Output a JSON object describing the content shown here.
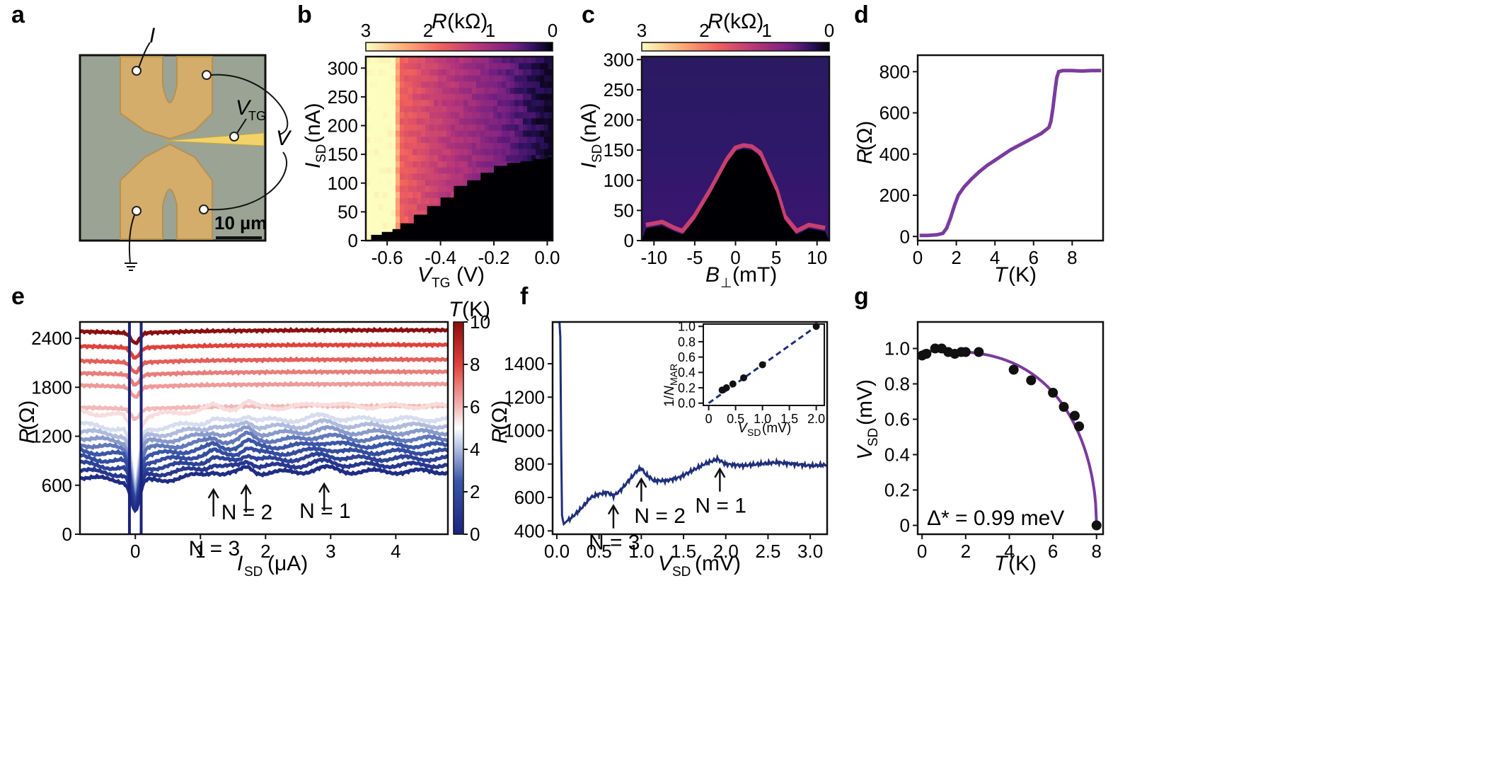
{
  "panel_letters": [
    "a",
    "b",
    "c",
    "d",
    "e",
    "f",
    "g"
  ],
  "panel_a": {
    "labels": {
      "I": "I",
      "VTG_main": "V",
      "VTG_sub": "TG",
      "V": "V"
    },
    "scalebar": "10 µm"
  },
  "chart_data": [
    {
      "panel": "b",
      "type": "heatmap",
      "xlabel_main": "V",
      "xlabel_sub": "TG",
      "xlabel_unit": "(V)",
      "ylabel_main": "I",
      "ylabel_sub": "SD",
      "ylabel_unit": "(nA)",
      "xlim": [
        -0.68,
        0.02
      ],
      "ylim": [
        0,
        320
      ],
      "xticks": [
        -0.6,
        -0.4,
        -0.2,
        0.0
      ],
      "xtick_labels": [
        "-0.6",
        "-0.4",
        "-0.2",
        "0.0"
      ],
      "yticks": [
        0,
        50,
        100,
        150,
        200,
        250,
        300
      ],
      "ytick_labels": [
        "0",
        "50",
        "100",
        "150",
        "200",
        "250",
        "300"
      ],
      "colorbar": {
        "label_main": "R",
        "label_unit": "(kΩ)",
        "ticks": [
          3,
          2,
          1,
          0
        ],
        "tick_labels": [
          "3",
          "2",
          "1",
          "0"
        ],
        "colormap": "magma",
        "position": "top"
      },
      "supercurrent_edge": {
        "vtg": [
          -0.66,
          -0.62,
          -0.58,
          -0.55,
          -0.5,
          -0.45,
          -0.4,
          -0.35,
          -0.3,
          -0.25,
          -0.2,
          -0.15,
          -0.1,
          -0.05,
          0.0
        ],
        "isd": [
          10,
          15,
          20,
          30,
          45,
          60,
          75,
          95,
          105,
          118,
          130,
          135,
          138,
          142,
          145
        ]
      }
    },
    {
      "panel": "c",
      "type": "heatmap",
      "xlabel_main": "B",
      "xlabel_sub": "⊥",
      "xlabel_unit": "(mT)",
      "ylabel_main": "I",
      "ylabel_sub": "SD",
      "ylabel_unit": "(nA)",
      "xlim": [
        -11.5,
        11.5
      ],
      "ylim": [
        0,
        305
      ],
      "xticks": [
        -10,
        -5,
        0,
        5,
        10
      ],
      "xtick_labels": [
        "-10",
        "-5",
        "0",
        "5",
        "10"
      ],
      "yticks": [
        0,
        50,
        100,
        150,
        200,
        250,
        300
      ],
      "ytick_labels": [
        "0",
        "50",
        "100",
        "150",
        "200",
        "250",
        "300"
      ],
      "colorbar": {
        "label_main": "R",
        "label_unit": "(kΩ)",
        "ticks": [
          3,
          2,
          1,
          0
        ],
        "tick_labels": [
          "3",
          "2",
          "1",
          "0"
        ],
        "colormap": "magma",
        "position": "top"
      },
      "supercurrent_edge": {
        "b": [
          -11,
          -9,
          -7.5,
          -6.5,
          -5,
          -3,
          -1,
          0,
          1,
          2,
          3,
          5,
          6,
          7.5,
          9,
          11
        ],
        "isd": [
          20,
          25,
          15,
          10,
          35,
          80,
          130,
          148,
          152,
          150,
          140,
          80,
          35,
          10,
          20,
          15
        ]
      }
    },
    {
      "panel": "d",
      "type": "line",
      "xlabel": "T",
      "xlabel_unit": "(K)",
      "ylabel": "R",
      "ylabel_unit": "(Ω)",
      "xlim": [
        0,
        9.6
      ],
      "ylim": [
        -20,
        880
      ],
      "xticks": [
        0,
        2,
        4,
        6,
        8
      ],
      "yticks": [
        0,
        200,
        400,
        600,
        800
      ],
      "color": "#7a3b9e",
      "x": [
        0.1,
        0.5,
        1.0,
        1.3,
        1.5,
        1.7,
        1.9,
        2.1,
        2.4,
        2.8,
        3.2,
        3.6,
        4.0,
        4.4,
        4.8,
        5.2,
        5.6,
        6.0,
        6.4,
        6.8,
        6.9,
        7.0,
        7.1,
        7.2,
        7.3,
        7.5,
        8.0,
        8.5,
        9.0,
        9.5
      ],
      "y": [
        5,
        5,
        8,
        15,
        40,
        90,
        150,
        200,
        240,
        280,
        315,
        345,
        370,
        395,
        420,
        440,
        460,
        480,
        500,
        530,
        560,
        620,
        700,
        770,
        800,
        805,
        805,
        803,
        805,
        805
      ]
    },
    {
      "panel": "e",
      "type": "line",
      "xlabel_main": "I",
      "xlabel_sub": "SD",
      "xlabel_unit": "(μA)",
      "ylabel": "R",
      "ylabel_unit": "(Ω)",
      "xlim": [
        -0.85,
        4.8
      ],
      "ylim": [
        0,
        2600
      ],
      "xticks": [
        0,
        1,
        2,
        3,
        4
      ],
      "yticks": [
        0,
        600,
        1200,
        1800,
        2400
      ],
      "colorbar": {
        "label_main": "T",
        "label_unit": "(K)",
        "ticks": [
          0,
          2,
          4,
          6,
          8,
          10
        ],
        "tick_labels": [
          "0",
          "2",
          "4",
          "6",
          "8",
          "10"
        ],
        "colormap": "blue-white-red",
        "position": "right"
      },
      "temperatures": [
        0.5,
        1.0,
        1.5,
        2.0,
        2.5,
        3.0,
        3.5,
        4.0,
        4.5,
        5.0,
        5.5,
        6.0,
        6.5,
        7.0,
        7.5,
        8.0,
        10.0
      ],
      "curve_offsets": [
        650,
        730,
        810,
        890,
        970,
        1050,
        1130,
        1210,
        1290,
        1370,
        1450,
        1530,
        1800,
        1950,
        2100,
        2280,
        2460
      ],
      "annotations": [
        {
          "text": "N = 3",
          "x": 1.2,
          "y": 650
        },
        {
          "text": "N = 2",
          "x": 1.7,
          "y": 700
        },
        {
          "text": "N = 1",
          "x": 2.9,
          "y": 720
        }
      ]
    },
    {
      "panel": "f",
      "type": "line",
      "xlabel_main": "V",
      "xlabel_sub": "SD",
      "xlabel_unit": "(mV)",
      "ylabel": "R",
      "ylabel_unit": "(Ω)",
      "xlim": [
        -0.05,
        3.2
      ],
      "ylim": [
        380,
        1650
      ],
      "xticks": [
        0.0,
        0.5,
        1.0,
        1.5,
        2.0,
        2.5,
        3.0
      ],
      "xtick_labels": [
        "0.0",
        "0.5",
        "1.0",
        "1.5",
        "2.0",
        "2.5",
        "3.0"
      ],
      "yticks": [
        400,
        600,
        800,
        1000,
        1200,
        1400
      ],
      "color": "#1f2f7a",
      "x": [
        0.0,
        0.02,
        0.04,
        0.05,
        0.06,
        0.08,
        0.1,
        0.2,
        0.3,
        0.4,
        0.5,
        0.6,
        0.67,
        0.75,
        0.85,
        0.95,
        1.0,
        1.05,
        1.15,
        1.3,
        1.45,
        1.6,
        1.75,
        1.9,
        2.0,
        2.2,
        2.4,
        2.6,
        2.8,
        3.0,
        3.2
      ],
      "y": [
        1650,
        1650,
        1650,
        1000,
        500,
        440,
        450,
        490,
        540,
        600,
        620,
        630,
        610,
        640,
        700,
        760,
        775,
        740,
        700,
        700,
        720,
        760,
        800,
        830,
        800,
        790,
        800,
        810,
        800,
        790,
        795
      ],
      "annotations": [
        {
          "text": "N = 3",
          "x": 0.67,
          "y": 610
        },
        {
          "text": "N = 2",
          "x": 1.0,
          "y": 770
        },
        {
          "text": "N = 1",
          "x": 1.93,
          "y": 830
        }
      ],
      "inset": {
        "type": "scatter",
        "xlabel_main": "V",
        "xlabel_sub": "SD",
        "xlabel_unit": "(mV)",
        "ylabel_pre": "1/",
        "ylabel_main": "N",
        "ylabel_sub": "MAR",
        "xlim": [
          -0.1,
          2.15
        ],
        "ylim": [
          -0.03,
          1.03
        ],
        "xticks": [
          0,
          0.5,
          1.0,
          1.5,
          2.0
        ],
        "xtick_labels": [
          "0",
          "0.5",
          "1.0",
          "1.5",
          "2.0"
        ],
        "yticks": [
          0.0,
          0.2,
          0.4,
          0.6,
          0.8,
          1.0
        ],
        "ytick_labels": [
          "0.0",
          "0.2",
          "0.4",
          "0.6",
          "0.8",
          "1.0"
        ],
        "x": [
          0.25,
          0.33,
          0.45,
          0.65,
          1.0,
          2.0
        ],
        "y": [
          0.17,
          0.2,
          0.25,
          0.33,
          0.5,
          1.0
        ],
        "fit": {
          "x": [
            0,
            2.05
          ],
          "y": [
            0,
            1.025
          ]
        }
      }
    },
    {
      "panel": "g",
      "type": "scatter",
      "xlabel": "T",
      "xlabel_unit": "(K)",
      "ylabel_main": "V",
      "ylabel_sub": "SD",
      "ylabel_unit": "(mV)",
      "xlim": [
        -0.2,
        8.3
      ],
      "ylim": [
        -0.05,
        1.15
      ],
      "xticks": [
        0,
        2,
        4,
        6,
        8
      ],
      "yticks": [
        0,
        0.2,
        0.4,
        0.6,
        0.8,
        1.0
      ],
      "ytick_labels": [
        "0",
        "0.2",
        "0.4",
        "0.6",
        "0.8",
        "1.0"
      ],
      "x": [
        0.0,
        0.2,
        0.6,
        0.9,
        1.2,
        1.5,
        1.8,
        2.0,
        2.6,
        4.2,
        5.0,
        6.0,
        6.5,
        7.0,
        7.2,
        8.0
      ],
      "y": [
        0.96,
        0.97,
        1.0,
        1.0,
        0.98,
        0.97,
        0.98,
        0.98,
        0.98,
        0.88,
        0.82,
        0.75,
        0.67,
        0.62,
        0.56,
        0.0
      ],
      "fit_color": "#7a3b9e",
      "annotation": "Δ* = 0.99 meV"
    }
  ]
}
